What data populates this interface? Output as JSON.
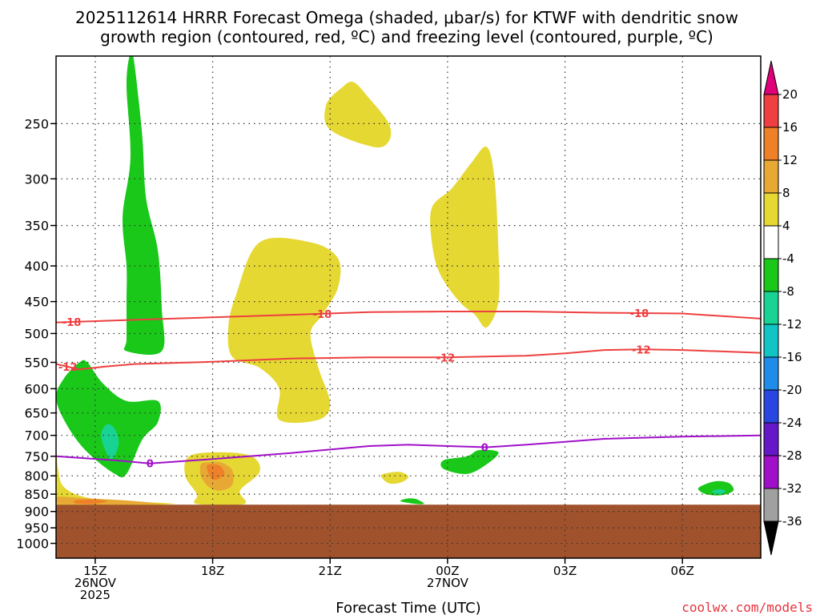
{
  "chart_data": {
    "type": "time-height cross-section (filled contour)",
    "title_line1": "2025112614 HRRR Forecast Omega (shaded, μbar/s) for KTWF with dendritic snow",
    "title_line2": "growth region (contoured, red, ºC) and freezing level (contoured, purple, ºC)",
    "xlabel": "Forecast Time (UTC)",
    "credit": "coolwx.com/models",
    "y_axis": {
      "units": "hPa",
      "scale": "log-pressure",
      "ylim": [
        1050,
        200
      ],
      "ticks": [
        250,
        300,
        350,
        400,
        450,
        500,
        550,
        600,
        650,
        700,
        750,
        800,
        850,
        900,
        950,
        1000
      ],
      "tick_labels": [
        "250",
        "300",
        "350",
        "400",
        "450",
        "500",
        "550",
        "600",
        "650",
        "700",
        "750",
        "800",
        "850",
        "900",
        "950",
        "1000"
      ]
    },
    "x_axis": {
      "units": "hours from 14Z 26 Nov 2025",
      "xlim": [
        0,
        18
      ],
      "ticks": [
        {
          "hour": 1,
          "line1": "15Z",
          "line2": "26NOV",
          "line3": "2025"
        },
        {
          "hour": 4,
          "line1": "18Z",
          "line2": "",
          "line3": ""
        },
        {
          "hour": 7,
          "line1": "21Z",
          "line2": "",
          "line3": ""
        },
        {
          "hour": 10,
          "line1": "00Z",
          "line2": "27NOV",
          "line3": ""
        },
        {
          "hour": 13,
          "line1": "03Z",
          "line2": "",
          "line3": ""
        },
        {
          "hour": 16,
          "line1": "06Z",
          "line2": "",
          "line3": ""
        }
      ]
    },
    "colorbar": {
      "max_arrow_color": "#e0007a",
      "min_arrow_color": "#000000",
      "bands": [
        {
          "from": 16,
          "to": 20,
          "color": "#ee4040"
        },
        {
          "from": 12,
          "to": 16,
          "color": "#ee8028"
        },
        {
          "from": 8,
          "to": 12,
          "color": "#e8a834"
        },
        {
          "from": 4,
          "to": 8,
          "color": "#e6d832"
        },
        {
          "from": -4,
          "to": 4,
          "color": "#ffffff"
        },
        {
          "from": -8,
          "to": -4,
          "color": "#19c819"
        },
        {
          "from": -12,
          "to": -8,
          "color": "#19d394"
        },
        {
          "from": -16,
          "to": -12,
          "color": "#12c4c4"
        },
        {
          "from": -20,
          "to": -16,
          "color": "#1e8ce8"
        },
        {
          "from": -24,
          "to": -20,
          "color": "#2846e0"
        },
        {
          "from": -28,
          "to": -24,
          "color": "#6418c8"
        },
        {
          "from": -32,
          "to": -28,
          "color": "#a010c8"
        },
        {
          "from": -36,
          "to": -32,
          "color": "#a0a0a0"
        }
      ],
      "labels": [
        "20",
        "16",
        "12",
        "8",
        "4",
        "-4",
        "-8",
        "-12",
        "-16",
        "-20",
        "-24",
        "-28",
        "-32",
        "-36"
      ]
    },
    "terrain": {
      "color": "#a0522d",
      "surface_pressure_hPa": 880
    },
    "contours": [
      {
        "name": "-18 °C isotherm",
        "color": "#ee4040",
        "value_label": "-18",
        "points": [
          [
            0,
            482
          ],
          [
            2,
            478
          ],
          [
            4,
            474
          ],
          [
            6,
            470
          ],
          [
            8,
            466
          ],
          [
            10,
            465
          ],
          [
            12,
            465
          ],
          [
            14,
            467
          ],
          [
            16,
            468
          ],
          [
            18,
            476
          ]
        ],
        "label_hours": [
          0.4,
          6.8,
          14.9
        ]
      },
      {
        "name": "-12 °C isotherm",
        "color": "#ee4040",
        "value_label": "-12",
        "points": [
          [
            0,
            553
          ],
          [
            0.6,
            563
          ],
          [
            1.2,
            558
          ],
          [
            2,
            553
          ],
          [
            4,
            549
          ],
          [
            6,
            543
          ],
          [
            8,
            541
          ],
          [
            10,
            541
          ],
          [
            12,
            538
          ],
          [
            13,
            534
          ],
          [
            14,
            528
          ],
          [
            15,
            527
          ],
          [
            16,
            528
          ],
          [
            18,
            533
          ]
        ],
        "label_hours": [
          0.3,
          9.95,
          14.95
        ]
      },
      {
        "name": "0 °C freezing level",
        "color": "#a010c8",
        "value_label": "0",
        "points": [
          [
            0,
            750
          ],
          [
            1.5,
            760
          ],
          [
            2.4,
            768
          ],
          [
            4,
            757
          ],
          [
            6,
            742
          ],
          [
            8,
            725
          ],
          [
            9,
            722
          ],
          [
            10,
            725
          ],
          [
            11,
            728
          ],
          [
            12,
            722
          ],
          [
            13,
            715
          ],
          [
            14,
            708
          ],
          [
            16,
            703
          ],
          [
            18,
            700
          ]
        ],
        "label_hours": [
          2.4,
          10.95
        ]
      }
    ],
    "shaded_regions": [
      {
        "omega_band": "-8 to -4",
        "color": "#19c819",
        "description": "tall narrow column",
        "points": [
          [
            1.8,
            220
          ],
          [
            1.9,
            280
          ],
          [
            1.7,
            340
          ],
          [
            1.8,
            400
          ],
          [
            1.8,
            450
          ],
          [
            1.8,
            510
          ],
          [
            1.8,
            530
          ],
          [
            2.7,
            530
          ],
          [
            2.7,
            460
          ],
          [
            2.6,
            380
          ],
          [
            2.3,
            320
          ],
          [
            2.2,
            260
          ],
          [
            2.0,
            205
          ],
          [
            1.9,
            198
          ]
        ]
      },
      {
        "omega_band": "-8 to -4",
        "color": "#19c819",
        "points": [
          [
            0.2,
            580
          ],
          [
            0.0,
            620
          ],
          [
            0.3,
            680
          ],
          [
            0.8,
            740
          ],
          [
            1.5,
            795
          ],
          [
            1.8,
            795
          ],
          [
            2.2,
            710
          ],
          [
            2.6,
            670
          ],
          [
            2.6,
            625
          ],
          [
            1.8,
            625
          ],
          [
            1.2,
            590
          ],
          [
            0.8,
            550
          ],
          [
            0.6,
            550
          ]
        ]
      },
      {
        "omega_band": "-12 to -8",
        "color": "#19d394",
        "points": [
          [
            1.15,
            700
          ],
          [
            1.3,
            745
          ],
          [
            1.45,
            755
          ],
          [
            1.6,
            720
          ],
          [
            1.5,
            685
          ],
          [
            1.3,
            675
          ]
        ]
      },
      {
        "omega_band": "4 to 8",
        "color": "#e6d832",
        "points": [
          [
            5.2,
            370
          ],
          [
            4.6,
            440
          ],
          [
            4.4,
            490
          ],
          [
            4.5,
            540
          ],
          [
            5.2,
            560
          ],
          [
            5.7,
            600
          ],
          [
            5.7,
            665
          ],
          [
            6.7,
            665
          ],
          [
            7.0,
            630
          ],
          [
            6.7,
            560
          ],
          [
            6.5,
            500
          ],
          [
            6.8,
            470
          ],
          [
            7.2,
            430
          ],
          [
            7.2,
            390
          ],
          [
            6.5,
            370
          ]
        ]
      },
      {
        "omega_band": "4 to 8",
        "color": "#e6d832",
        "points": [
          [
            6.9,
            235
          ],
          [
            7.0,
            255
          ],
          [
            8.1,
            270
          ],
          [
            8.5,
            265
          ],
          [
            8.5,
            250
          ],
          [
            8.0,
            230
          ],
          [
            7.6,
            218
          ],
          [
            7.3,
            222
          ]
        ]
      },
      {
        "omega_band": "4 to 8",
        "color": "#e6d832",
        "points": [
          [
            9.6,
            330
          ],
          [
            9.6,
            370
          ],
          [
            9.8,
            410
          ],
          [
            10.3,
            450
          ],
          [
            10.7,
            470
          ],
          [
            11.0,
            490
          ],
          [
            11.3,
            450
          ],
          [
            11.3,
            380
          ],
          [
            11.2,
            300
          ],
          [
            11.0,
            270
          ],
          [
            10.6,
            285
          ],
          [
            10.1,
            310
          ]
        ]
      },
      {
        "omega_band": "4 to 8",
        "color": "#e6d832",
        "points": [
          [
            3.4,
            750
          ],
          [
            3.3,
            800
          ],
          [
            3.6,
            850
          ],
          [
            3.6,
            878
          ],
          [
            4.8,
            878
          ],
          [
            4.7,
            840
          ],
          [
            5.2,
            790
          ],
          [
            5.0,
            750
          ],
          [
            4.2,
            740
          ]
        ]
      },
      {
        "omega_band": "8 to 12",
        "color": "#e8a834",
        "points": [
          [
            3.7,
            770
          ],
          [
            3.7,
            800
          ],
          [
            3.9,
            830
          ],
          [
            4.2,
            840
          ],
          [
            4.5,
            825
          ],
          [
            4.5,
            785
          ],
          [
            4.2,
            765
          ],
          [
            3.9,
            765
          ]
        ]
      },
      {
        "omega_band": "12 to 16",
        "color": "#ee8028",
        "points": [
          [
            3.85,
            775
          ],
          [
            3.95,
            805
          ],
          [
            4.1,
            810
          ],
          [
            4.3,
            795
          ],
          [
            4.2,
            775
          ],
          [
            4.0,
            770
          ]
        ]
      },
      {
        "omega_band": "4 to 8",
        "color": "#e6d832",
        "points": [
          [
            0.0,
            730
          ],
          [
            0.05,
            780
          ],
          [
            0.2,
            830
          ],
          [
            0.8,
            860
          ],
          [
            1.8,
            870
          ],
          [
            3.0,
            878
          ],
          [
            0.0,
            878
          ]
        ]
      },
      {
        "omega_band": "8 to 12",
        "color": "#e8a834",
        "points": [
          [
            0.0,
            858
          ],
          [
            0.8,
            862
          ],
          [
            1.8,
            868
          ],
          [
            2.5,
            875
          ],
          [
            2.5,
            878
          ],
          [
            0.0,
            878
          ]
        ]
      },
      {
        "omega_band": "12 to 16",
        "color": "#ee8028",
        "points": [
          [
            0.5,
            868
          ],
          [
            0.9,
            865
          ],
          [
            1.3,
            870
          ],
          [
            0.9,
            878
          ],
          [
            0.5,
            876
          ]
        ]
      },
      {
        "omega_band": "4 to 8",
        "color": "#e6d832",
        "points": [
          [
            8.3,
            800
          ],
          [
            8.5,
            820
          ],
          [
            8.8,
            818
          ],
          [
            9.0,
            803
          ],
          [
            8.8,
            790
          ],
          [
            8.5,
            792
          ]
        ]
      },
      {
        "omega_band": "-8 to -4",
        "color": "#19c819",
        "points": [
          [
            9.9,
            760
          ],
          [
            9.9,
            782
          ],
          [
            10.5,
            795
          ],
          [
            11.0,
            770
          ],
          [
            11.3,
            740
          ],
          [
            10.8,
            735
          ],
          [
            10.5,
            750
          ]
        ]
      },
      {
        "omega_band": "-8 to -4",
        "color": "#19c819",
        "points": [
          [
            8.8,
            870
          ],
          [
            9.2,
            878
          ],
          [
            9.4,
            877
          ],
          [
            9.2,
            864
          ],
          [
            9.0,
            862
          ]
        ]
      },
      {
        "omega_band": "-8 to -4",
        "color": "#19c819",
        "points": [
          [
            16.4,
            835
          ],
          [
            16.6,
            850
          ],
          [
            17.0,
            853
          ],
          [
            17.3,
            840
          ],
          [
            17.2,
            820
          ],
          [
            16.9,
            814
          ],
          [
            16.6,
            822
          ]
        ]
      },
      {
        "omega_band": "-12 to -8",
        "color": "#19d394",
        "points": [
          [
            16.75,
            843
          ],
          [
            16.95,
            850
          ],
          [
            17.1,
            842
          ],
          [
            16.95,
            836
          ]
        ]
      }
    ]
  }
}
